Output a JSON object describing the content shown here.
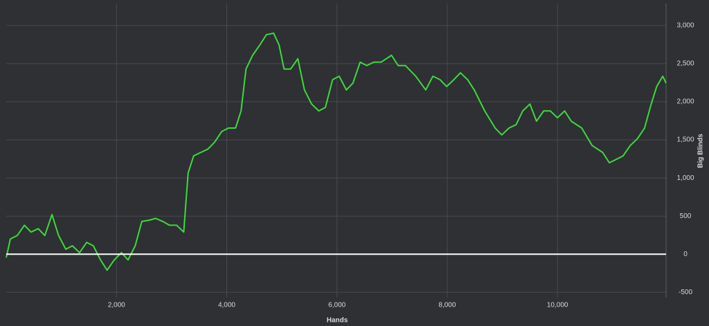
{
  "chart_data": {
    "type": "line",
    "x_label": "Hands",
    "y_label": "Big Blinds",
    "x": [
      0,
      75,
      200,
      330,
      450,
      580,
      700,
      830,
      950,
      1080,
      1200,
      1330,
      1460,
      1580,
      1710,
      1830,
      1960,
      2090,
      2210,
      2340,
      2460,
      2590,
      2710,
      2840,
      2960,
      3090,
      3220,
      3300,
      3400,
      3530,
      3660,
      3780,
      3910,
      4030,
      4160,
      4260,
      4350,
      4470,
      4600,
      4720,
      4850,
      4950,
      5040,
      5160,
      5290,
      5410,
      5540,
      5670,
      5790,
      5920,
      6040,
      6170,
      6290,
      6420,
      6540,
      6670,
      6800,
      6990,
      7110,
      7240,
      7430,
      7610,
      7740,
      7870,
      7990,
      8120,
      8240,
      8370,
      8490,
      8680,
      8870,
      8990,
      9120,
      9250,
      9370,
      9500,
      9620,
      9750,
      9870,
      10000,
      10130,
      10250,
      10440,
      10630,
      10820,
      10940,
      11070,
      11190,
      11320,
      11450,
      11580,
      11700,
      11800,
      11910,
      11970
    ],
    "series": [
      {
        "color": "#3fd93f",
        "values": [
          -45,
          200,
          245,
          380,
          290,
          335,
          245,
          520,
          245,
          65,
          110,
          20,
          155,
          110,
          -75,
          -210,
          -75,
          20,
          -75,
          110,
          430,
          445,
          470,
          430,
          380,
          380,
          290,
          1065,
          1290,
          1335,
          1380,
          1470,
          1610,
          1655,
          1655,
          1880,
          2430,
          2610,
          2745,
          2880,
          2900,
          2745,
          2430,
          2430,
          2565,
          2155,
          1970,
          1880,
          1925,
          2290,
          2335,
          2155,
          2245,
          2520,
          2475,
          2520,
          2520,
          2610,
          2475,
          2475,
          2335,
          2155,
          2335,
          2290,
          2200,
          2290,
          2380,
          2290,
          2155,
          1880,
          1655,
          1565,
          1655,
          1700,
          1880,
          1970,
          1745,
          1880,
          1880,
          1790,
          1880,
          1745,
          1655,
          1425,
          1335,
          1200,
          1245,
          1290,
          1425,
          1515,
          1655,
          1970,
          2200,
          2335,
          2245
        ]
      }
    ],
    "reference_line": 0,
    "xlim": [
      0,
      11970
    ],
    "ylim": [
      -570,
      3290
    ],
    "xticks": [
      {
        "value": 2000,
        "label": "2,000"
      },
      {
        "value": 4000,
        "label": "4,000"
      },
      {
        "value": 6000,
        "label": "6,000"
      },
      {
        "value": 8000,
        "label": "8,000"
      },
      {
        "value": 10000,
        "label": "10,000"
      }
    ],
    "yticks": [
      -500,
      0,
      500,
      {
        "value": 1000,
        "label": "1,000"
      },
      {
        "value": 1500,
        "label": "1,500"
      },
      {
        "value": 2000,
        "label": "2,000"
      },
      {
        "value": 2500,
        "label": "2,500"
      },
      {
        "value": 3000,
        "label": "3,000"
      }
    ],
    "grid": true
  }
}
